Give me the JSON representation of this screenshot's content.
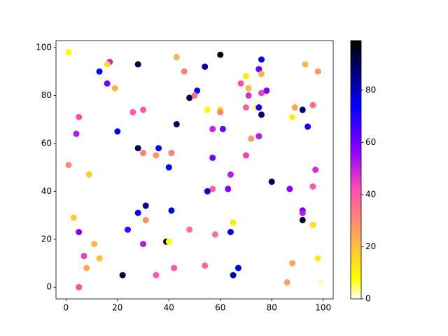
{
  "chart_data": {
    "type": "scatter",
    "colormap": "gnuplot2_r",
    "x": [
      1,
      28,
      17,
      16,
      13,
      16,
      19,
      43,
      46,
      54,
      60,
      70,
      71,
      76,
      75,
      68,
      71,
      76,
      78,
      74,
      75,
      76,
      76,
      93,
      98,
      51,
      48,
      50,
      26,
      30,
      5,
      55,
      60,
      60,
      70,
      89,
      92,
      88,
      96,
      43,
      57,
      61,
      94,
      75,
      72,
      4,
      20,
      28,
      30,
      36,
      35,
      41,
      40,
      57,
      70,
      1,
      9,
      64,
      97,
      80,
      57,
      55,
      63,
      87,
      96,
      92,
      92,
      92,
      96,
      3,
      5,
      24,
      28,
      31,
      31,
      41,
      48,
      58,
      64,
      65,
      30,
      39,
      40,
      11,
      7,
      13,
      8,
      5,
      22,
      35,
      42,
      54,
      65,
      67,
      86,
      88,
      98,
      99
    ],
    "values": [
      98,
      93,
      94,
      93,
      90,
      85,
      83,
      96,
      90,
      92,
      97,
      88,
      83,
      95,
      91,
      85,
      80,
      81,
      82,
      75,
      75,
      72,
      89,
      93,
      90,
      82,
      79,
      80,
      73,
      74,
      71,
      74,
      74,
      73,
      75,
      75,
      74,
      71,
      76,
      68,
      66,
      66,
      67,
      63,
      62,
      64,
      65,
      58,
      56,
      58,
      55,
      56,
      50,
      54,
      55,
      51,
      47,
      47,
      49,
      44,
      41,
      40,
      41,
      41,
      42,
      32,
      31,
      28,
      26,
      29,
      23,
      24,
      31,
      34,
      28,
      32,
      24,
      22,
      23,
      27,
      18,
      19,
      19,
      18,
      13,
      12,
      8,
      0,
      5,
      5,
      8,
      9,
      5,
      8,
      2,
      10,
      12,
      2
    ],
    "color_values": [
      8,
      92,
      50,
      15,
      75,
      60,
      22,
      22,
      33,
      85,
      97,
      12,
      22,
      75,
      62,
      42,
      48,
      45,
      58,
      5,
      72,
      88,
      22,
      22,
      28,
      72,
      92,
      35,
      40,
      40,
      42,
      10,
      15,
      32,
      38,
      25,
      88,
      12,
      36,
      90,
      50,
      62,
      72,
      52,
      28,
      52,
      75,
      92,
      33,
      75,
      28,
      33,
      75,
      60,
      45,
      30,
      18,
      52,
      48,
      90,
      38,
      78,
      58,
      58,
      40,
      62,
      52,
      95,
      15,
      18,
      58,
      65,
      75,
      85,
      30,
      78,
      35,
      35,
      78,
      12,
      52,
      95,
      8,
      22,
      45,
      20,
      25,
      42,
      95,
      40,
      40,
      37,
      82,
      75,
      27,
      25,
      12,
      2
    ],
    "xlim": [
      -3.9,
      103.9
    ],
    "ylim": [
      -4.9,
      102.9
    ],
    "xticks": [
      0,
      20,
      40,
      60,
      80,
      100
    ],
    "yticks": [
      0,
      20,
      40,
      60,
      80,
      100
    ],
    "clim": [
      0,
      99
    ],
    "cticks": [
      0,
      20,
      40,
      60,
      80
    ]
  }
}
